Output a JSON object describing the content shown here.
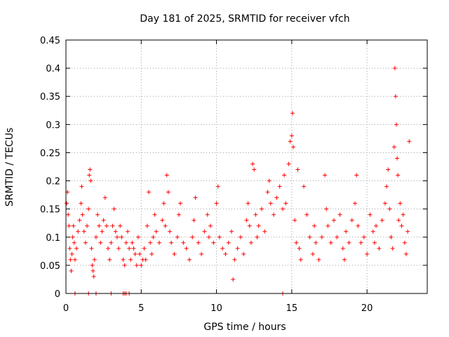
{
  "chart_data": {
    "type": "scatter",
    "title": "Day 181 of 2025, SRMTID for receiver vfch",
    "xlabel": "GPS time / hours",
    "ylabel": "SRMTID / TECUs",
    "xlim": [
      0,
      24
    ],
    "ylim": [
      0,
      0.45
    ],
    "x_ticks": [
      0,
      5,
      10,
      15,
      20
    ],
    "x_tick_labels": [
      "0",
      "5",
      "10",
      "15",
      "20"
    ],
    "y_ticks": [
      0,
      0.05,
      0.1,
      0.15,
      0.2,
      0.25,
      0.3,
      0.35,
      0.4,
      0.45
    ],
    "y_tick_labels": [
      "0",
      "0.05",
      "0.1",
      "0.15",
      "0.2",
      "0.25",
      "0.3",
      "0.35",
      "0.4",
      "0.45"
    ],
    "grid": true,
    "marker": "+",
    "color": "#ff0000",
    "series": [
      {
        "name": "SRMTID",
        "points": [
          [
            0.05,
            0.16
          ],
          [
            0.1,
            0.18
          ],
          [
            0.15,
            0.14
          ],
          [
            0.2,
            0.12
          ],
          [
            0.25,
            0.08
          ],
          [
            0.3,
            0.06
          ],
          [
            0.35,
            0.04
          ],
          [
            0.4,
            0.07
          ],
          [
            0.45,
            0.1
          ],
          [
            0.5,
            0.12
          ],
          [
            0.55,
            0.09
          ],
          [
            0.6,
            0.06
          ],
          [
            0.7,
            0.08
          ],
          [
            0.8,
            0.11
          ],
          [
            0.9,
            0.13
          ],
          [
            1.0,
            0.16
          ],
          [
            1.05,
            0.19
          ],
          [
            1.1,
            0.14
          ],
          [
            1.2,
            0.11
          ],
          [
            1.3,
            0.09
          ],
          [
            1.4,
            0.12
          ],
          [
            1.5,
            0.15
          ],
          [
            1.55,
            0.21
          ],
          [
            1.6,
            0.22
          ],
          [
            1.65,
            0.2
          ],
          [
            1.7,
            0.08
          ],
          [
            1.75,
            0.05
          ],
          [
            1.8,
            0.04
          ],
          [
            1.85,
            0.03
          ],
          [
            1.9,
            0.06
          ],
          [
            2.0,
            0.1
          ],
          [
            2.1,
            0.14
          ],
          [
            2.2,
            0.12
          ],
          [
            2.3,
            0.09
          ],
          [
            2.4,
            0.11
          ],
          [
            2.5,
            0.13
          ],
          [
            2.6,
            0.17
          ],
          [
            2.7,
            0.12
          ],
          [
            2.8,
            0.08
          ],
          [
            2.9,
            0.06
          ],
          [
            3.0,
            0.09
          ],
          [
            3.1,
            0.12
          ],
          [
            3.2,
            0.15
          ],
          [
            3.3,
            0.11
          ],
          [
            3.4,
            0.1
          ],
          [
            3.5,
            0.08
          ],
          [
            3.6,
            0.12
          ],
          [
            3.7,
            0.1
          ],
          [
            3.8,
            0.06
          ],
          [
            3.9,
            0.05
          ],
          [
            4.0,
            0.09
          ],
          [
            4.1,
            0.11
          ],
          [
            4.2,
            0.08
          ],
          [
            4.3,
            0.06
          ],
          [
            4.4,
            0.09
          ],
          [
            4.5,
            0.08
          ],
          [
            4.6,
            0.07
          ],
          [
            4.7,
            0.05
          ],
          [
            4.8,
            0.1
          ],
          [
            4.9,
            0.07
          ],
          [
            5.0,
            0.05
          ],
          [
            5.1,
            0.06
          ],
          [
            5.2,
            0.08
          ],
          [
            5.3,
            0.06
          ],
          [
            5.4,
            0.12
          ],
          [
            5.5,
            0.18
          ],
          [
            5.6,
            0.09
          ],
          [
            5.7,
            0.07
          ],
          [
            5.8,
            0.1
          ],
          [
            5.9,
            0.14
          ],
          [
            6.0,
            0.11
          ],
          [
            6.2,
            0.09
          ],
          [
            6.4,
            0.13
          ],
          [
            6.5,
            0.16
          ],
          [
            6.6,
            0.12
          ],
          [
            6.7,
            0.21
          ],
          [
            6.8,
            0.18
          ],
          [
            6.9,
            0.11
          ],
          [
            7.0,
            0.09
          ],
          [
            7.2,
            0.07
          ],
          [
            7.4,
            0.1
          ],
          [
            7.5,
            0.14
          ],
          [
            7.6,
            0.16
          ],
          [
            7.8,
            0.09
          ],
          [
            8.0,
            0.08
          ],
          [
            8.2,
            0.06
          ],
          [
            8.4,
            0.1
          ],
          [
            8.5,
            0.13
          ],
          [
            8.6,
            0.17
          ],
          [
            8.8,
            0.09
          ],
          [
            9.0,
            0.07
          ],
          [
            9.2,
            0.11
          ],
          [
            9.4,
            0.14
          ],
          [
            9.5,
            0.1
          ],
          [
            9.6,
            0.12
          ],
          [
            9.8,
            0.09
          ],
          [
            10.0,
            0.16
          ],
          [
            10.1,
            0.19
          ],
          [
            10.2,
            0.1
          ],
          [
            10.4,
            0.08
          ],
          [
            10.6,
            0.07
          ],
          [
            10.8,
            0.09
          ],
          [
            11.0,
            0.11
          ],
          [
            11.1,
            0.025
          ],
          [
            11.2,
            0.06
          ],
          [
            11.4,
            0.08
          ],
          [
            11.6,
            0.1
          ],
          [
            11.8,
            0.07
          ],
          [
            12.0,
            0.13
          ],
          [
            12.1,
            0.16
          ],
          [
            12.2,
            0.12
          ],
          [
            12.3,
            0.09
          ],
          [
            12.4,
            0.23
          ],
          [
            12.5,
            0.22
          ],
          [
            12.6,
            0.14
          ],
          [
            12.7,
            0.1
          ],
          [
            12.8,
            0.12
          ],
          [
            13.0,
            0.15
          ],
          [
            13.2,
            0.11
          ],
          [
            13.4,
            0.18
          ],
          [
            13.5,
            0.2
          ],
          [
            13.6,
            0.16
          ],
          [
            13.8,
            0.14
          ],
          [
            14.0,
            0.17
          ],
          [
            14.2,
            0.19
          ],
          [
            14.4,
            0.15
          ],
          [
            14.5,
            0.21
          ],
          [
            14.6,
            0.16
          ],
          [
            14.8,
            0.23
          ],
          [
            14.9,
            0.27
          ],
          [
            15.0,
            0.28
          ],
          [
            15.05,
            0.32
          ],
          [
            15.1,
            0.26
          ],
          [
            15.2,
            0.13
          ],
          [
            15.3,
            0.09
          ],
          [
            15.4,
            0.22
          ],
          [
            15.5,
            0.08
          ],
          [
            15.6,
            0.06
          ],
          [
            15.8,
            0.19
          ],
          [
            16.0,
            0.14
          ],
          [
            16.2,
            0.1
          ],
          [
            16.4,
            0.07
          ],
          [
            16.5,
            0.12
          ],
          [
            16.6,
            0.09
          ],
          [
            16.8,
            0.06
          ],
          [
            17.0,
            0.1
          ],
          [
            17.2,
            0.21
          ],
          [
            17.3,
            0.15
          ],
          [
            17.4,
            0.12
          ],
          [
            17.6,
            0.09
          ],
          [
            17.8,
            0.13
          ],
          [
            18.0,
            0.1
          ],
          [
            18.2,
            0.14
          ],
          [
            18.4,
            0.08
          ],
          [
            18.5,
            0.06
          ],
          [
            18.6,
            0.11
          ],
          [
            18.8,
            0.09
          ],
          [
            19.0,
            0.13
          ],
          [
            19.2,
            0.16
          ],
          [
            19.3,
            0.21
          ],
          [
            19.4,
            0.12
          ],
          [
            19.6,
            0.09
          ],
          [
            19.8,
            0.1
          ],
          [
            20.0,
            0.07
          ],
          [
            20.2,
            0.14
          ],
          [
            20.4,
            0.11
          ],
          [
            20.5,
            0.09
          ],
          [
            20.6,
            0.12
          ],
          [
            20.8,
            0.08
          ],
          [
            21.0,
            0.13
          ],
          [
            21.2,
            0.16
          ],
          [
            21.3,
            0.19
          ],
          [
            21.4,
            0.22
          ],
          [
            21.5,
            0.15
          ],
          [
            21.6,
            0.1
          ],
          [
            21.7,
            0.08
          ],
          [
            21.8,
            0.26
          ],
          [
            21.85,
            0.4
          ],
          [
            21.9,
            0.35
          ],
          [
            21.95,
            0.3
          ],
          [
            22.0,
            0.24
          ],
          [
            22.05,
            0.21
          ],
          [
            22.1,
            0.13
          ],
          [
            22.2,
            0.16
          ],
          [
            22.3,
            0.12
          ],
          [
            22.4,
            0.14
          ],
          [
            22.5,
            0.09
          ],
          [
            22.6,
            0.07
          ],
          [
            22.7,
            0.11
          ],
          [
            22.8,
            0.27
          ],
          [
            0.6,
            0.0
          ],
          [
            1.5,
            0.0
          ],
          [
            2.0,
            0.0
          ],
          [
            3.0,
            0.0
          ],
          [
            3.8,
            0.0
          ],
          [
            3.9,
            0.0
          ],
          [
            4.0,
            0.0
          ],
          [
            4.2,
            0.0
          ],
          [
            14.4,
            0.0
          ]
        ]
      }
    ],
    "legend": "none"
  }
}
